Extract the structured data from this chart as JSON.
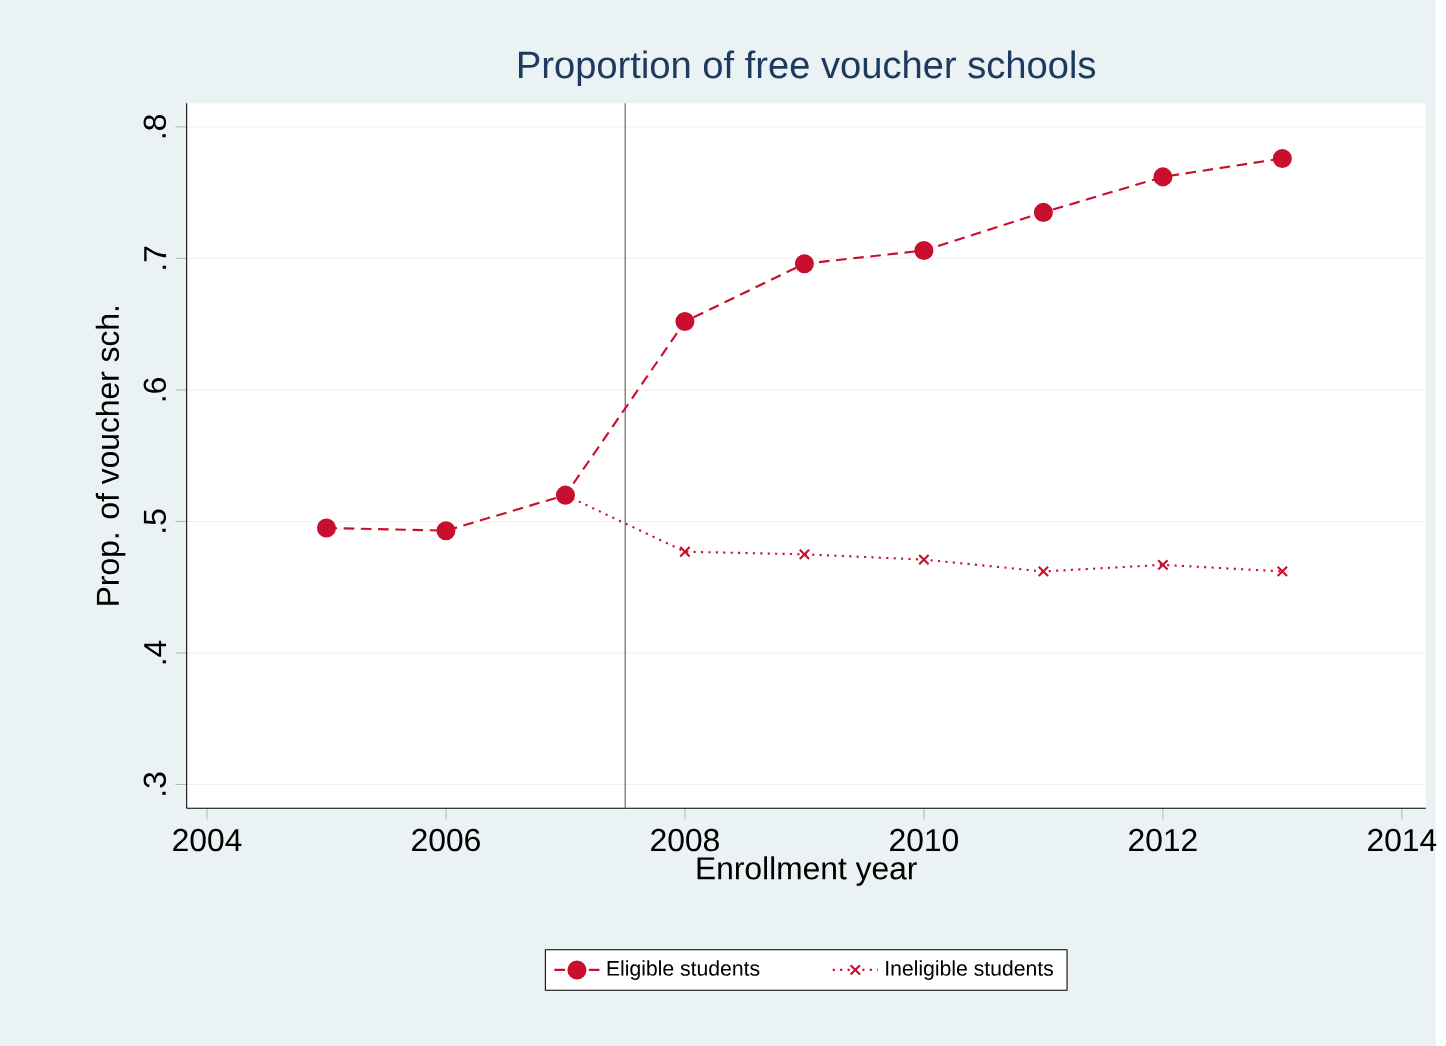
{
  "chart_data": {
    "type": "line",
    "title": "Proportion of free voucher schools",
    "xlabel": "Enrollment year",
    "ylabel": "Prop. of voucher sch.",
    "x": [
      2005,
      2006,
      2007,
      2008,
      2009,
      2010,
      2011,
      2012,
      2013
    ],
    "series": [
      {
        "name": "Eligible students",
        "color": "#c8102e",
        "marker": "circle",
        "line_style": "dashed",
        "values": [
          0.495,
          0.493,
          0.52,
          0.652,
          0.696,
          0.706,
          0.735,
          0.762,
          0.776
        ]
      },
      {
        "name": "Ineligible students",
        "color": "#c8102e",
        "marker": "cross",
        "line_style": "dotted",
        "values": [
          null,
          null,
          0.52,
          0.477,
          0.475,
          0.471,
          0.462,
          0.467,
          0.462
        ]
      }
    ],
    "xlim": [
      2003.83,
      2014.2
    ],
    "ylim": [
      0.282,
      0.818
    ],
    "xticks": [
      2004,
      2006,
      2008,
      2010,
      2012,
      2014
    ],
    "yticks": [
      {
        "value": 0.3,
        "label": ".3"
      },
      {
        "value": 0.4,
        "label": ".4"
      },
      {
        "value": 0.5,
        "label": ".5"
      },
      {
        "value": 0.6,
        "label": ".6"
      },
      {
        "value": 0.7,
        "label": ".7"
      },
      {
        "value": 0.8,
        "label": ".8"
      }
    ],
    "ref_lines": [
      {
        "axis": "x",
        "value": 2007.5,
        "color": "#555555"
      }
    ],
    "grid": "y",
    "legend": "bottom"
  }
}
